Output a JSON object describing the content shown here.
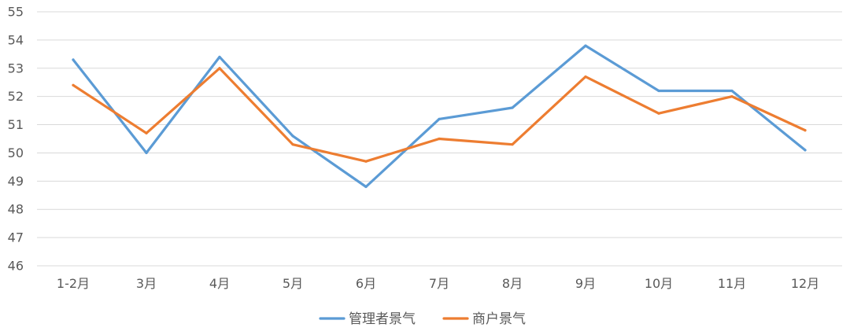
{
  "chart_data": {
    "type": "line",
    "categories": [
      "1-2月",
      "3月",
      "4月",
      "5月",
      "6月",
      "7月",
      "8月",
      "9月",
      "10月",
      "11月",
      "12月"
    ],
    "series": [
      {
        "name": "管理者景气",
        "color": "#5b9bd5",
        "values": [
          53.3,
          50.0,
          53.4,
          50.6,
          48.8,
          51.2,
          51.6,
          53.8,
          52.2,
          52.2,
          50.1
        ]
      },
      {
        "name": "商户景气",
        "color": "#ed7d31",
        "values": [
          52.4,
          50.7,
          53.0,
          50.3,
          49.7,
          50.5,
          50.3,
          52.7,
          51.4,
          52.0,
          50.8
        ]
      }
    ],
    "title": "",
    "xlabel": "",
    "ylabel": "",
    "ylim": [
      46,
      55
    ],
    "yticks": [
      46,
      47,
      48,
      49,
      50,
      51,
      52,
      53,
      54,
      55
    ],
    "grid": "horizontal",
    "legend": "bottom-center"
  }
}
